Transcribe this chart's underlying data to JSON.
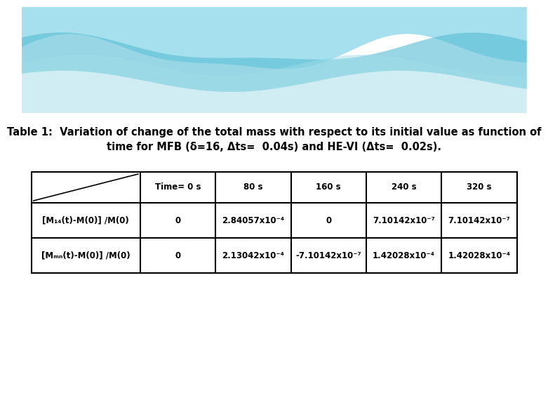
{
  "title_line1": "Table 1:  Variation of change of the total mass with respect to its initial value as function of",
  "title_line2": "time for MFB (δ=16, Δts=  0.04s) and HE-VI (Δts=  0.02s).",
  "col_headers": [
    "Time= 0 s",
    "80 s",
    "160 s",
    "240 s",
    "320 s"
  ],
  "row_label_1": "[M₁₄(t)-M(0)] /M(0)",
  "row_label_2": "[Mₘₙ(t)-M(0)] /M(0)",
  "table_data": [
    [
      "0",
      "2.84057x10⁻⁴",
      "0",
      "7.10142x10⁻⁷",
      "7.10142x10⁻⁷"
    ],
    [
      "0",
      "2.13042x10⁻⁴",
      "-7.10142x10⁻⁷",
      "1.42028x10⁻⁴",
      "1.42028x10⁻⁴"
    ]
  ],
  "bg_color": "#ffffff",
  "wave_bg": "#b8e8f2",
  "wave_color1": "#80d4e8",
  "wave_color2": "#55bcd4",
  "wave_color3": "#a0dce8"
}
